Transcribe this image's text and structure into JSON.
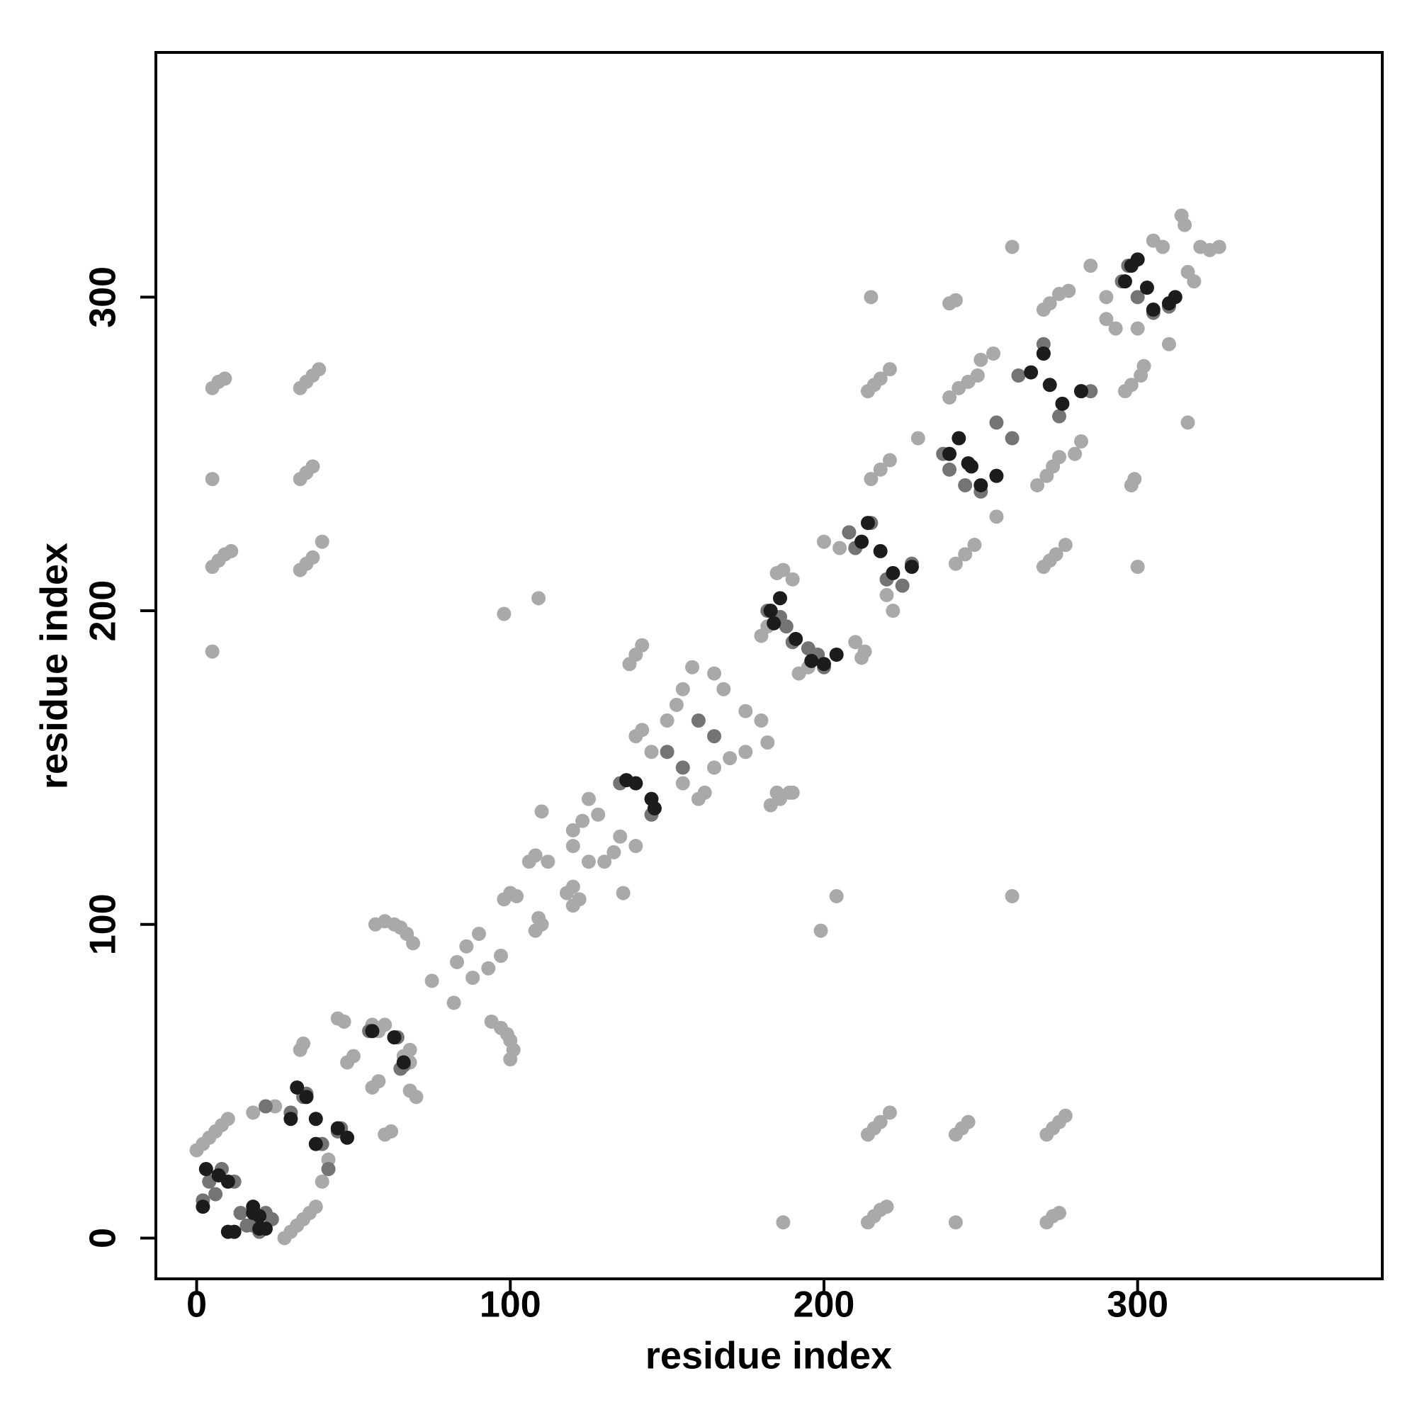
{
  "chart_data": {
    "type": "scatter",
    "xlabel": "residue index",
    "ylabel": "residue index",
    "xlim": [
      -13,
      378
    ],
    "ylim": [
      -13,
      378
    ],
    "xticks": [
      0,
      100,
      200,
      300
    ],
    "yticks": [
      0,
      100,
      200,
      300
    ],
    "series": [
      {
        "color": "#a9a9a9",
        "x": [
          5,
          7,
          9,
          5,
          33,
          35,
          37,
          39,
          33,
          35,
          37,
          5,
          7,
          9,
          11,
          5,
          33,
          35,
          37,
          40,
          214,
          216,
          218,
          221,
          242,
          244,
          246,
          271,
          273,
          275,
          277,
          187,
          214,
          216,
          218,
          220,
          242,
          271,
          273,
          275,
          109,
          98,
          260,
          204,
          199,
          215,
          260,
          300,
          316,
          0,
          2,
          4,
          6,
          8,
          10,
          28,
          30,
          32,
          34,
          36,
          38,
          40,
          42,
          18,
          25,
          48,
          50,
          56,
          58,
          60,
          33,
          62,
          34,
          45,
          47,
          56,
          58,
          60,
          70,
          68,
          68,
          66,
          68,
          57,
          60,
          63,
          65,
          67,
          69,
          100,
          101,
          100,
          99,
          97,
          94,
          75,
          82,
          83,
          88,
          86,
          93,
          90,
          97,
          98,
          100,
          102,
          108,
          110,
          109,
          106,
          108,
          112,
          120,
          122,
          120,
          118,
          120,
          125,
          123,
          133,
          128,
          135,
          130,
          120,
          136,
          110,
          140,
          125,
          140,
          142,
          145,
          160,
          162,
          155,
          138,
          140,
          142,
          183,
          186,
          189,
          150,
          153,
          155,
          158,
          165,
          170,
          175,
          182,
          165,
          168,
          180,
          175,
          185,
          190,
          180,
          182,
          185,
          192,
          195,
          212,
          200,
          205,
          222,
          220,
          210,
          190,
          214,
          216,
          218,
          221,
          270,
          272,
          274,
          277,
          240,
          242,
          298,
          299,
          213,
          187,
          215,
          218,
          221,
          242,
          245,
          248,
          230,
          255,
          240,
          243,
          246,
          249,
          268,
          271,
          273,
          275,
          250,
          254,
          280,
          282,
          270,
          272,
          275,
          296,
          298,
          301,
          285,
          310,
          290,
          293,
          300,
          290,
          308,
          316,
          314,
          315,
          320,
          326,
          323,
          305,
          318,
          278,
          302
        ],
        "values": [
          271,
          273,
          274,
          242,
          271,
          273,
          275,
          277,
          242,
          244,
          246,
          214,
          216,
          218,
          219,
          187,
          213,
          215,
          217,
          222,
          33,
          35,
          37,
          40,
          33,
          35,
          37,
          33,
          35,
          37,
          39,
          5,
          5,
          7,
          9,
          10,
          5,
          5,
          7,
          8,
          204,
          199,
          109,
          109,
          98,
          300,
          316,
          214,
          260,
          28,
          30,
          32,
          34,
          36,
          38,
          0,
          2,
          4,
          6,
          8,
          10,
          18,
          25,
          40,
          42,
          56,
          58,
          48,
          50,
          33,
          60,
          34,
          62,
          70,
          69,
          68,
          66,
          68,
          45,
          47,
          56,
          58,
          60,
          100,
          101,
          100,
          99,
          97,
          94,
          57,
          60,
          63,
          65,
          67,
          69,
          82,
          75,
          88,
          83,
          93,
          86,
          97,
          90,
          108,
          110,
          109,
          98,
          100,
          102,
          120,
          122,
          120,
          106,
          108,
          112,
          110,
          125,
          120,
          133,
          123,
          135,
          128,
          120,
          130,
          110,
          136,
          125,
          140,
          160,
          162,
          155,
          140,
          142,
          145,
          183,
          186,
          189,
          138,
          140,
          142,
          165,
          170,
          175,
          182,
          150,
          153,
          155,
          158,
          180,
          175,
          165,
          168,
          142,
          142,
          192,
          195,
          212,
          180,
          182,
          185,
          222,
          220,
          200,
          205,
          190,
          210,
          270,
          272,
          274,
          277,
          214,
          216,
          218,
          221,
          298,
          299,
          240,
          242,
          187,
          213,
          242,
          245,
          248,
          215,
          218,
          221,
          255,
          230,
          268,
          271,
          273,
          275,
          240,
          243,
          246,
          249,
          280,
          282,
          250,
          254,
          296,
          298,
          301,
          270,
          272,
          275,
          310,
          285,
          293,
          290,
          290,
          300,
          316,
          308,
          326,
          323,
          316,
          316,
          315,
          318,
          305,
          302,
          278
        ]
      },
      {
        "color": "#747474",
        "x": [
          2,
          4,
          8,
          12,
          18,
          22,
          16,
          20,
          24,
          14,
          6,
          30,
          35,
          40,
          46,
          45,
          34,
          42,
          22,
          55,
          66,
          65,
          64,
          135,
          145,
          150,
          155,
          165,
          160,
          182,
          188,
          200,
          195,
          190,
          186,
          198,
          210,
          220,
          225,
          208,
          215,
          228,
          238,
          250,
          245,
          240,
          255,
          260,
          262,
          275,
          270,
          285,
          282,
          270,
          295,
          305,
          300,
          310,
          297
        ],
        "values": [
          12,
          18,
          22,
          18,
          4,
          8,
          4,
          2,
          6,
          8,
          14,
          40,
          46,
          30,
          35,
          34,
          45,
          22,
          42,
          66,
          55,
          54,
          64,
          145,
          135,
          155,
          150,
          160,
          165,
          200,
          195,
          182,
          188,
          190,
          198,
          186,
          220,
          210,
          208,
          225,
          228,
          215,
          250,
          238,
          240,
          245,
          260,
          255,
          275,
          262,
          285,
          270,
          270,
          282,
          305,
          295,
          300,
          297,
          310
        ]
      },
      {
        "color": "#1c1c1c",
        "x": [
          3,
          7,
          10,
          22,
          20,
          18,
          10,
          12,
          18,
          20,
          2,
          30,
          32,
          35,
          38,
          48,
          45,
          38,
          56,
          66,
          63,
          137,
          146,
          140,
          145,
          183,
          186,
          200,
          204,
          191,
          184,
          196,
          212,
          214,
          222,
          228,
          218,
          240,
          243,
          250,
          255,
          246,
          247,
          266,
          270,
          276,
          282,
          272,
          296,
          300,
          305,
          312,
          298,
          310,
          303
        ],
        "values": [
          22,
          20,
          18,
          3,
          7,
          10,
          2,
          2,
          8,
          3,
          10,
          38,
          48,
          45,
          30,
          32,
          35,
          38,
          66,
          56,
          64,
          146,
          137,
          145,
          140,
          200,
          204,
          183,
          186,
          191,
          196,
          184,
          222,
          228,
          212,
          214,
          219,
          250,
          255,
          240,
          243,
          247,
          246,
          276,
          282,
          266,
          270,
          272,
          305,
          312,
          296,
          300,
          310,
          298,
          303
        ]
      }
    ]
  }
}
